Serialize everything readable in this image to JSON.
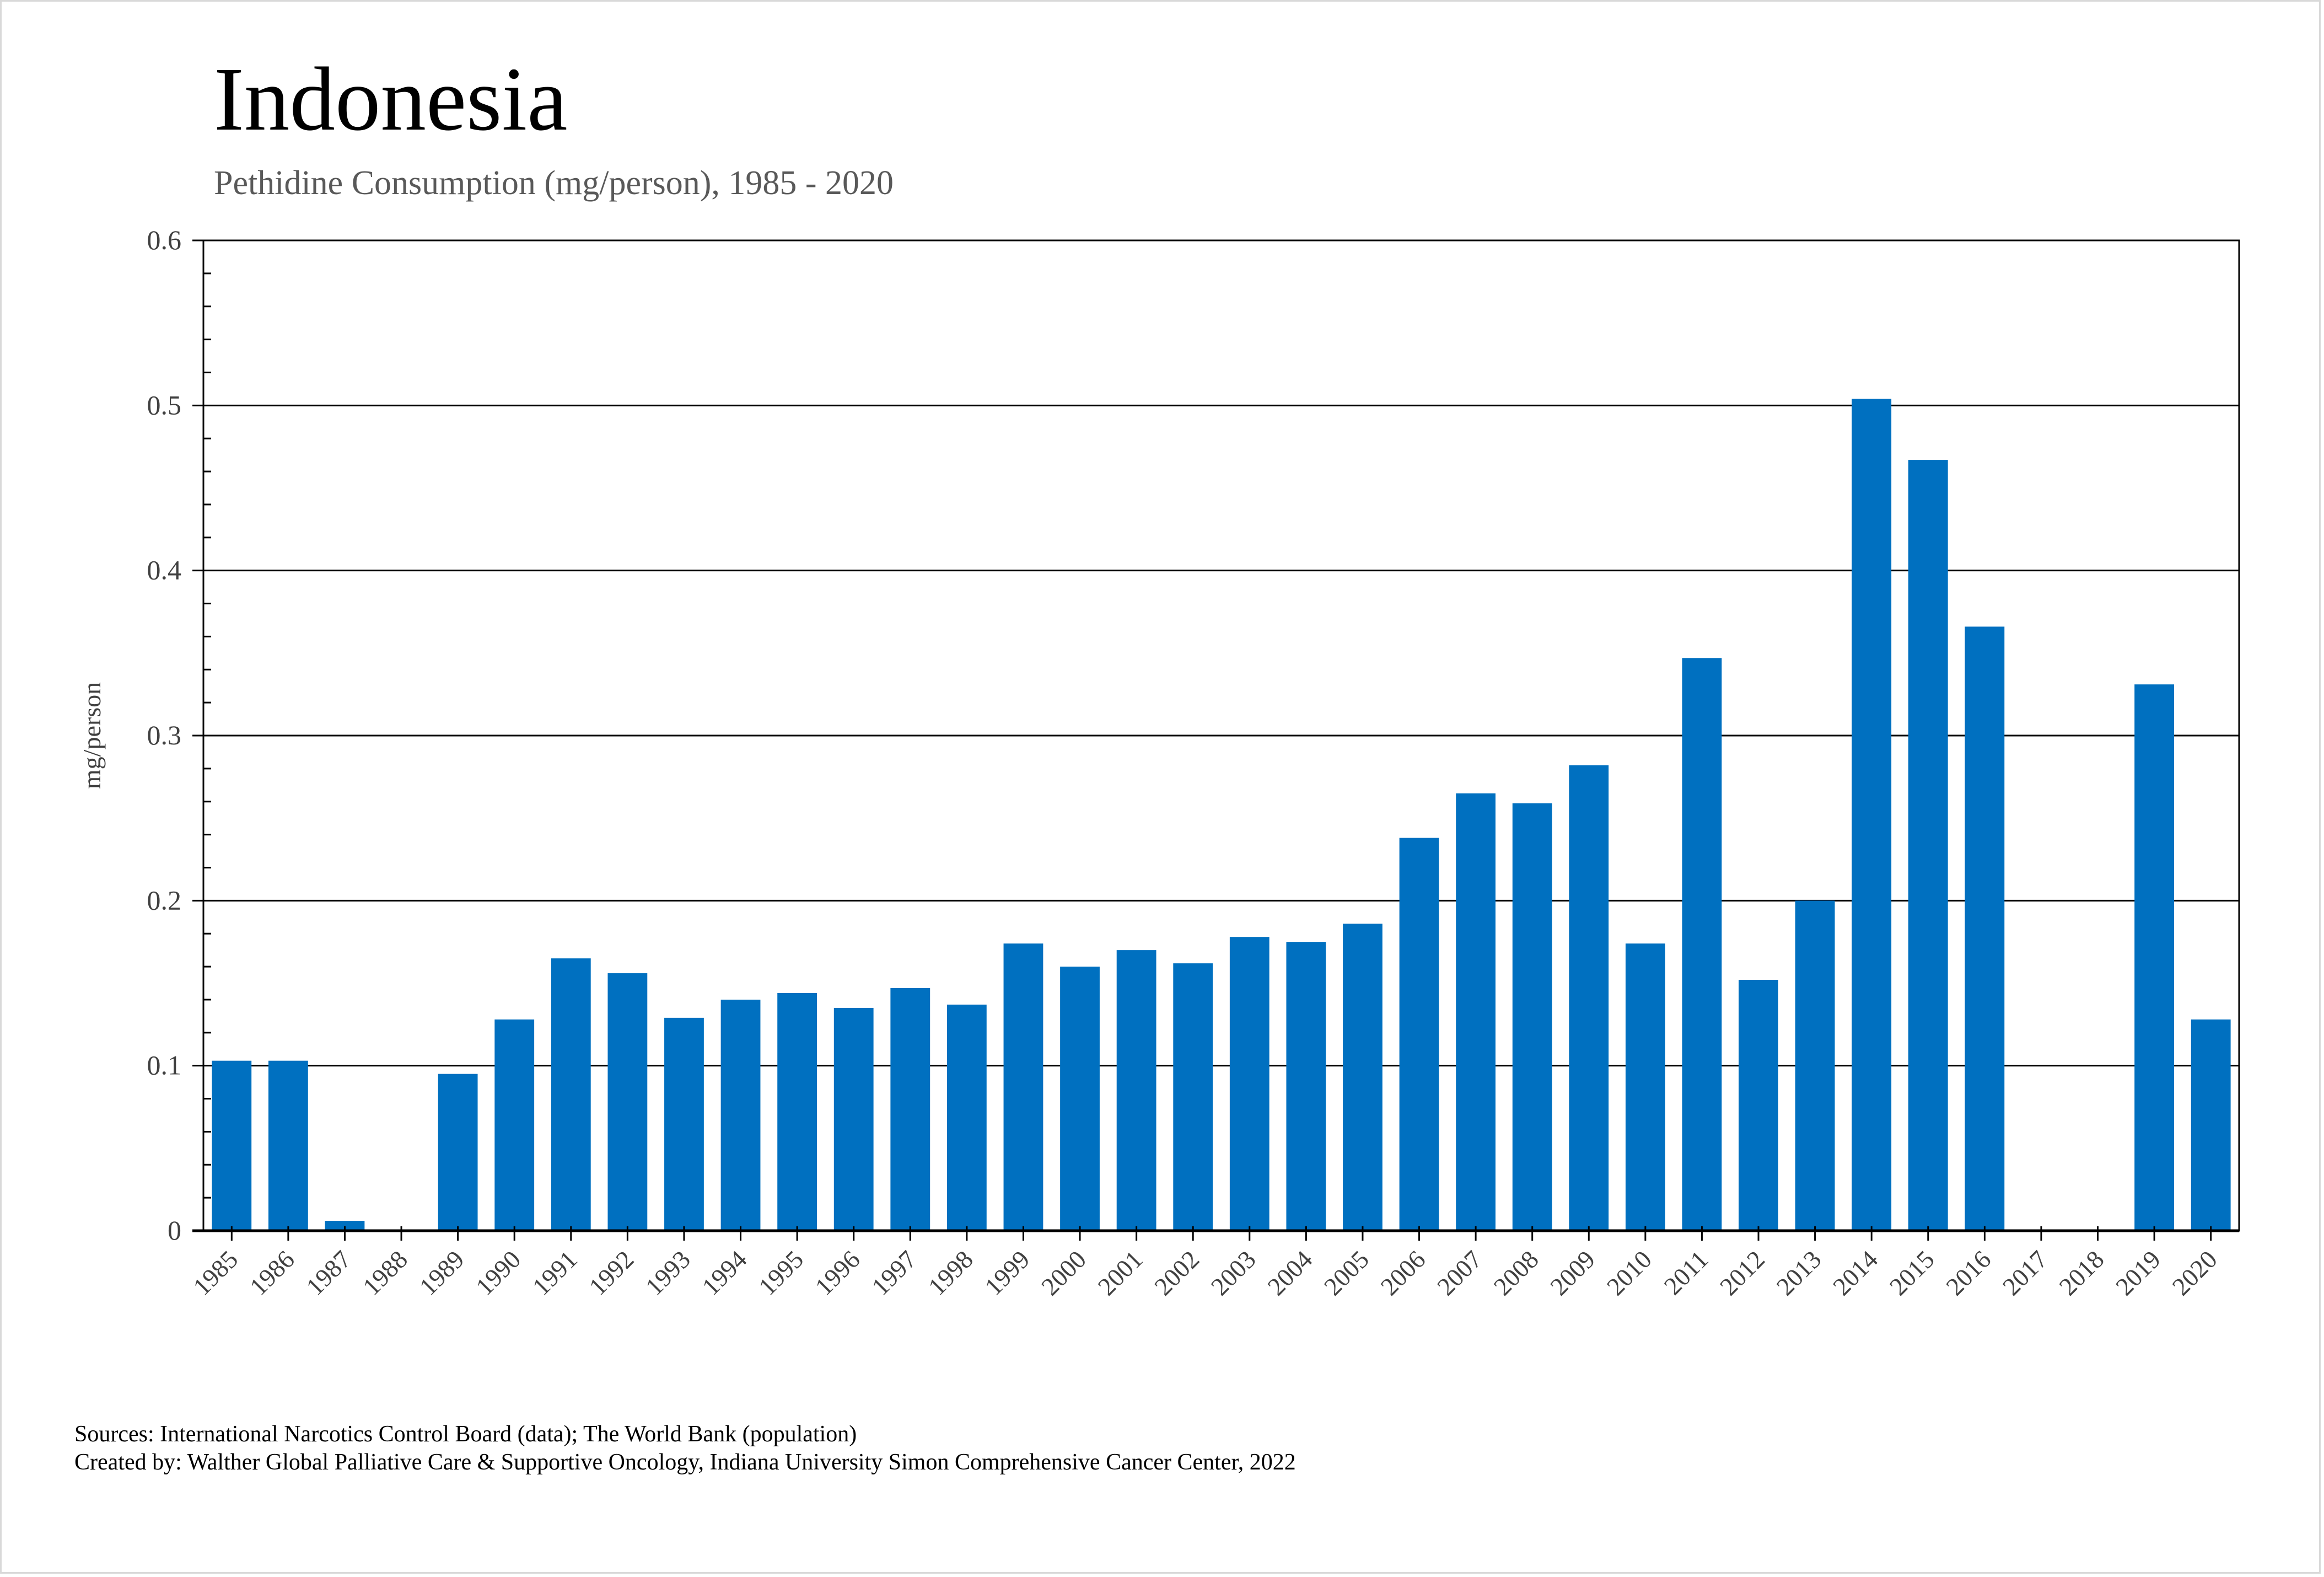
{
  "chart_data": {
    "type": "bar",
    "title": "Indonesia",
    "subtitle": "Pethidine Consumption (mg/person), 1985 - 2020",
    "xlabel": "",
    "ylabel": "mg/person",
    "ylim": [
      0,
      0.6
    ],
    "yticks": [
      "0",
      "0.1",
      "0.2",
      "0.3",
      "0.4",
      "0.5",
      "0.6"
    ],
    "grid": true,
    "bar_color": "#0070C0",
    "categories": [
      "1985",
      "1986",
      "1987",
      "1988",
      "1989",
      "1990",
      "1991",
      "1992",
      "1993",
      "1994",
      "1995",
      "1996",
      "1997",
      "1998",
      "1999",
      "2000",
      "2001",
      "2002",
      "2003",
      "2004",
      "2005",
      "2006",
      "2007",
      "2008",
      "2009",
      "2010",
      "2011",
      "2012",
      "2013",
      "2014",
      "2015",
      "2016",
      "2017",
      "2018",
      "2019",
      "2020"
    ],
    "values": [
      0.103,
      0.103,
      0.006,
      0,
      0.095,
      0.128,
      0.165,
      0.156,
      0.129,
      0.14,
      0.144,
      0.135,
      0.147,
      0.137,
      0.174,
      0.16,
      0.17,
      0.162,
      0.178,
      0.175,
      0.186,
      0.238,
      0.265,
      0.259,
      0.282,
      0.174,
      0.347,
      0.152,
      0.2,
      0.504,
      0.467,
      0.366,
      0,
      0,
      0.331,
      0.128
    ]
  },
  "footer": {
    "sources": "Sources: International Narcotics Control Board (data); The World Bank (population)",
    "created_by": "Created by: Walther Global Palliative Care & Supportive Oncology, Indiana University Simon Comprehensive Cancer Center, 2022"
  }
}
